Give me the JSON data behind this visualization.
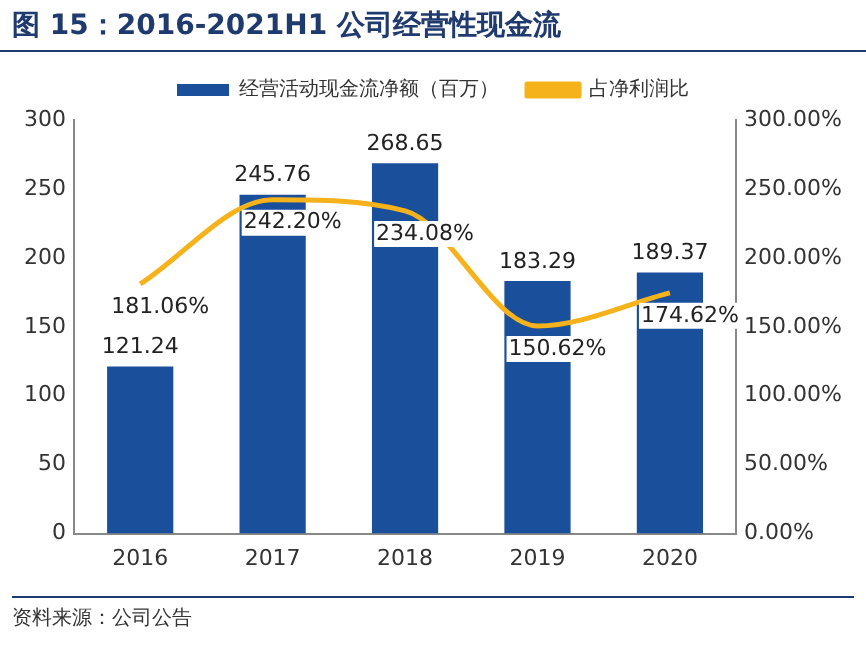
{
  "chart_data": {
    "type": "bar",
    "title": "图 15：2016-2021H1 公司经营性现金流",
    "annotations": [
      "资料来源：公司公告"
    ],
    "categories": [
      "2016",
      "2017",
      "2018",
      "2019",
      "2020"
    ],
    "series": [
      {
        "name": "经营活动现金流净额（百万）",
        "color": "#1a4f9c",
        "values": [
          121.24,
          245.76,
          268.65,
          183.29,
          189.37
        ],
        "value_labels": [
          "121.24",
          "245.76",
          "268.65",
          "183.29",
          "189.37"
        ]
      },
      {
        "name": "占净利润比",
        "type": "line",
        "axis": "y2",
        "color": "#f5b21a",
        "values": [
          181.06,
          242.2,
          234.08,
          150.62,
          174.62
        ],
        "value_labels": [
          "181.06%",
          "242.20%",
          "234.08%",
          "150.62%",
          "174.62%"
        ]
      }
    ],
    "ylim": [
      0,
      300
    ],
    "yticks": [
      0,
      50,
      100,
      150,
      200,
      250,
      300
    ],
    "y2lim": [
      0,
      300
    ],
    "y2ticks": [
      {
        "value": 0,
        "label": "0.00%"
      },
      {
        "value": 50,
        "label": "50.00%"
      },
      {
        "value": 100,
        "label": "100.00%"
      },
      {
        "value": 150,
        "label": "150.00%"
      },
      {
        "value": 200,
        "label": "200.00%"
      },
      {
        "value": 250,
        "label": "250.00%"
      },
      {
        "value": 300,
        "label": "300.00%"
      }
    ],
    "grid": false,
    "legend": "top",
    "marker": "none",
    "line_style": "solid"
  }
}
